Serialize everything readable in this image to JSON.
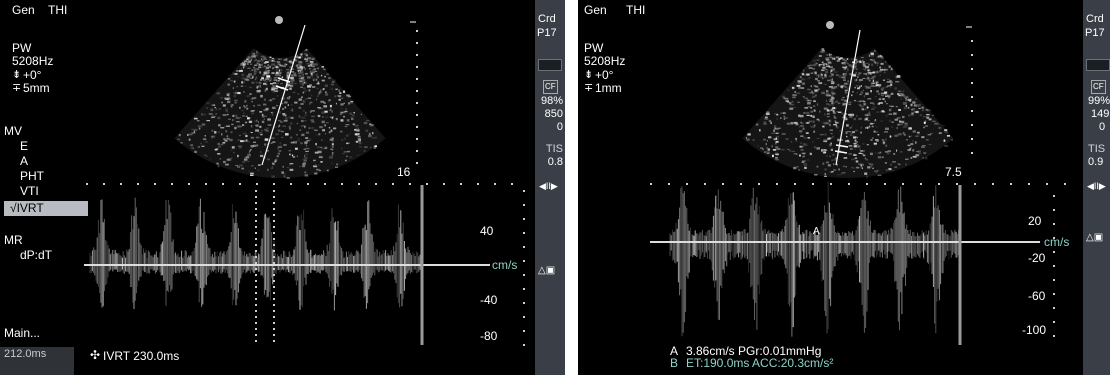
{
  "left": {
    "mode": "Gen",
    "preset": "THI",
    "pw": "PW",
    "prf": "5208Hz",
    "angle": "+0°",
    "gate": "5mm",
    "depth": "16",
    "menu_group1": "MV",
    "menu_items": [
      "E",
      "A",
      "PHT",
      "VTI"
    ],
    "menu_selected": "√IVRT",
    "menu_group2": "MR",
    "menu_item_mr": "dP:dT",
    "main": "Main...",
    "measure_value": "212.0ms",
    "measurement": "IVRT 230.0ms",
    "axis_unit": "cm/s",
    "axis_ticks": [
      "40",
      "-40",
      "-80"
    ],
    "side": {
      "crd": "Crd",
      "probe": "P17",
      "cf": "CF",
      "v1": "98%",
      "v2": "850",
      "v3": "0",
      "tis": "TIS",
      "tis_val": "0.8"
    }
  },
  "right": {
    "mode": "Gen",
    "preset": "THI",
    "pw": "PW",
    "prf": "5208Hz",
    "angle": "+0°",
    "gate": "1mm",
    "depth": "7.5",
    "marker_a": "A",
    "axis_unit": "cm/s",
    "axis_ticks": [
      "20",
      "-20",
      "-60",
      "-100"
    ],
    "result_a_label": "A",
    "result_a": "3.86cm/s PGr:0.01mmHg",
    "result_b_label": "B",
    "result_b": "ET:190.0ms  ACC:20.3cm/s²",
    "side": {
      "crd": "Crd",
      "probe": "P17",
      "cf": "CF",
      "v1": "99%",
      "v2": "149",
      "v3": "0",
      "tis": "TIS",
      "tis_val": "0.9"
    }
  },
  "colors": {
    "background": "#000000",
    "sidebar": "#3a3f47",
    "accent_teal": "#8ed3c8",
    "selected_menu": "#b8bcc2"
  },
  "icons": [
    "gen-dot-icon",
    "angle-icon",
    "gate-icon",
    "battery-icon",
    "cf-icon",
    "freeze-icon",
    "sample-volume-icon",
    "caliper-icon"
  ]
}
